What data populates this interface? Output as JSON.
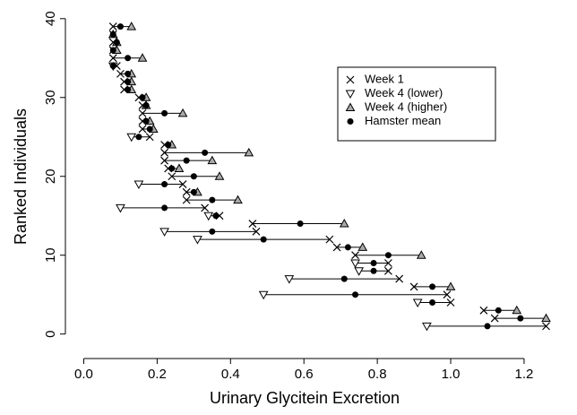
{
  "chart_data": {
    "type": "scatter",
    "xlabel": "Urinary Glycitein Excretion",
    "ylabel": "Ranked Individuals",
    "ranks": [
      1,
      2,
      3,
      4,
      5,
      6,
      7,
      8,
      9,
      10,
      11,
      12,
      13,
      14,
      15,
      16,
      17,
      18,
      19,
      20,
      21,
      22,
      23,
      24,
      25,
      26,
      27,
      28,
      29,
      30,
      31,
      32,
      33,
      34,
      35,
      36,
      37,
      38,
      39
    ],
    "series": [
      {
        "name": "Week 1",
        "marker": "x",
        "color": "#000000",
        "values": [
          1.26,
          1.12,
          1.09,
          1.0,
          0.99,
          0.9,
          0.86,
          0.83,
          0.83,
          0.74,
          0.69,
          0.67,
          0.47,
          0.46,
          0.37,
          0.33,
          0.28,
          0.28,
          0.27,
          0.24,
          0.23,
          0.22,
          0.22,
          0.22,
          0.18,
          0.16,
          0.16,
          0.16,
          0.16,
          0.15,
          0.11,
          0.11,
          0.1,
          0.09,
          0.08,
          0.08,
          0.08,
          0.08,
          0.08
        ]
      },
      {
        "name": "Week 4 (lower)",
        "marker": "triangle-down",
        "color": "#000000",
        "values": [
          0.935,
          null,
          null,
          0.91,
          0.49,
          null,
          0.56,
          0.75,
          0.74,
          null,
          null,
          0.31,
          0.22,
          null,
          0.34,
          0.1,
          null,
          null,
          0.15,
          null,
          null,
          null,
          null,
          null,
          0.13,
          null,
          null,
          null,
          null,
          null,
          null,
          null,
          null,
          0.08,
          null,
          null,
          null,
          null,
          null
        ]
      },
      {
        "name": "Week 4 (higher)",
        "marker": "triangle-up",
        "color": "#000000",
        "values": [
          null,
          1.26,
          1.18,
          null,
          null,
          1.0,
          null,
          null,
          null,
          0.92,
          0.76,
          null,
          null,
          0.71,
          null,
          null,
          0.42,
          0.31,
          null,
          0.37,
          0.26,
          0.35,
          0.45,
          0.24,
          null,
          0.19,
          0.18,
          0.27,
          0.17,
          0.17,
          0.13,
          0.13,
          0.13,
          null,
          0.16,
          0.09,
          0.09,
          0.08,
          0.13
        ]
      },
      {
        "name": "Hamster mean",
        "marker": "dot",
        "color": "#000000",
        "values": [
          1.1,
          1.19,
          1.13,
          0.95,
          0.74,
          0.95,
          0.71,
          0.79,
          0.79,
          0.83,
          0.72,
          0.49,
          0.35,
          0.59,
          0.36,
          0.22,
          0.35,
          0.3,
          0.22,
          0.3,
          0.24,
          0.28,
          0.33,
          0.23,
          0.15,
          0.18,
          0.17,
          0.22,
          0.17,
          0.16,
          0.12,
          0.12,
          0.12,
          0.08,
          0.12,
          0.08,
          0.09,
          0.08,
          0.1
        ]
      }
    ],
    "xlim": [
      -0.05,
      1.31
    ],
    "ylim": [
      -1.4,
      41
    ],
    "xticks": [
      {
        "value": 0,
        "label": "0.0"
      },
      0.2,
      0.4,
      0.6,
      0.8,
      {
        "value": 1,
        "label": "1.0"
      },
      1.2
    ],
    "yticks": [
      0,
      10,
      20,
      30,
      40
    ],
    "legend": "upper right"
  }
}
